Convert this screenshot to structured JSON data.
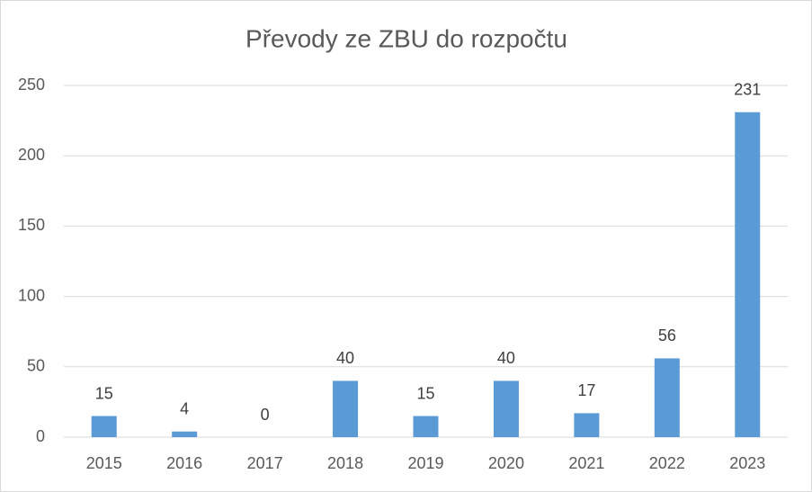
{
  "chart_data": {
    "type": "bar",
    "title": "Převody ze ZBU do rozpočtu",
    "categories": [
      "2015",
      "2016",
      "2017",
      "2018",
      "2019",
      "2020",
      "2021",
      "2022",
      "2023"
    ],
    "values": [
      15,
      4,
      0,
      40,
      15,
      40,
      17,
      56,
      231
    ],
    "color": "#5b9bd5",
    "ylim": [
      0,
      250
    ],
    "yticks": [
      0,
      50,
      100,
      150,
      200,
      250
    ],
    "grid": true
  }
}
